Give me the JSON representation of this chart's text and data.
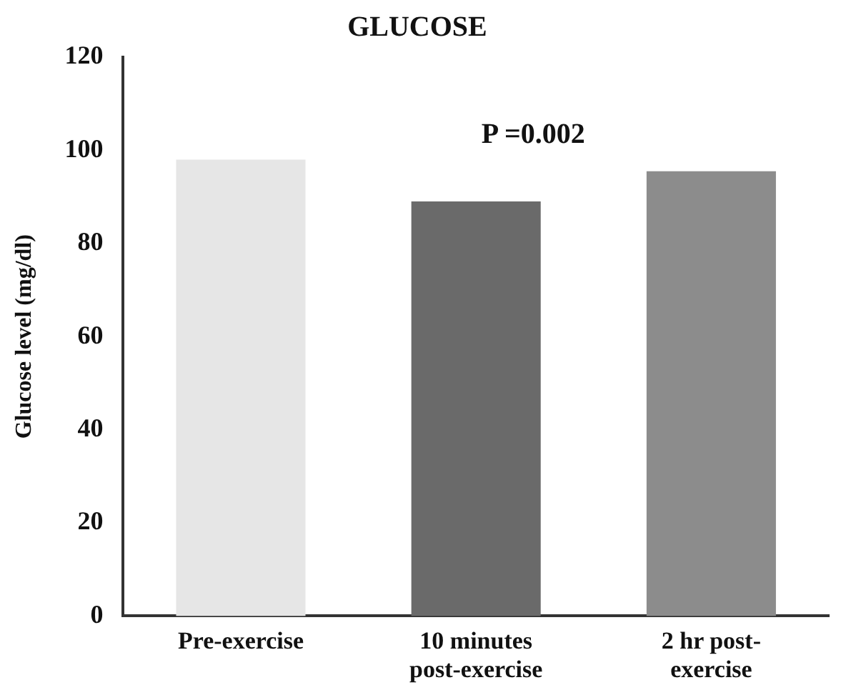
{
  "chart_data": {
    "type": "bar",
    "title": "GLUCOSE",
    "ylabel": "Glucose level (mg/dl)",
    "categories": [
      "Pre-exercise",
      "10 minutes post-exercise",
      "2 hr post-exercise"
    ],
    "values": [
      98,
      89,
      95.5
    ],
    "colors": [
      "#e6e6e6",
      "#6a6a6a",
      "#8c8c8c"
    ],
    "ylim": [
      0,
      120
    ],
    "yticks": [
      0,
      20,
      40,
      60,
      80,
      100,
      120
    ],
    "grid": false,
    "legend": false,
    "annotations": [
      "P =0.002"
    ]
  }
}
